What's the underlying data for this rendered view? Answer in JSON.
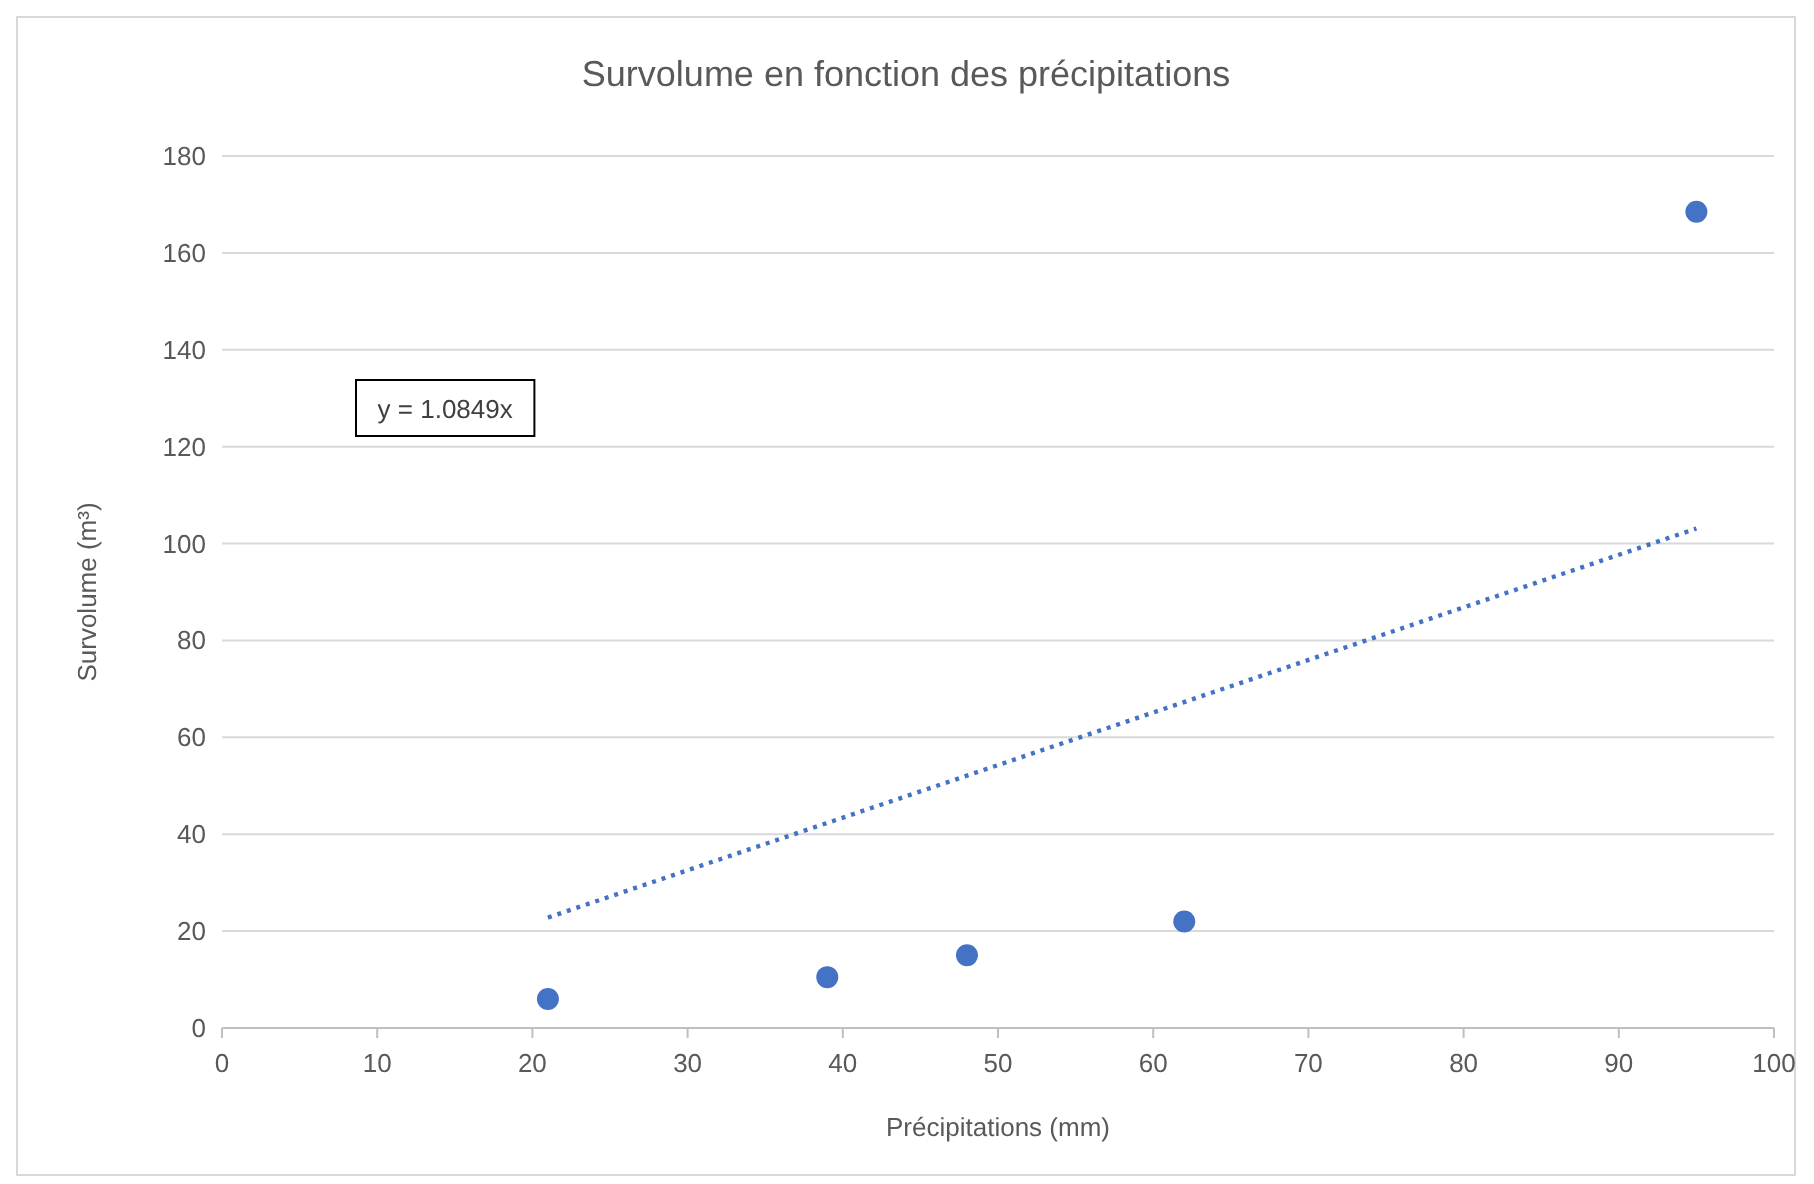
{
  "chart_data": {
    "type": "scatter",
    "title": "Survolume en fonction des précipitations",
    "xlabel": "Précipitations (mm)",
    "ylabel": "Survolume (m³)",
    "xlim": [
      0,
      100
    ],
    "xticks": [
      0,
      10,
      20,
      30,
      40,
      50,
      60,
      70,
      80,
      90,
      100
    ],
    "ylim": [
      0,
      180
    ],
    "yticks": [
      0,
      20,
      40,
      60,
      80,
      100,
      120,
      140,
      160,
      180
    ],
    "grid": "y",
    "marker": "circle",
    "series": [
      {
        "color": "#4472c4",
        "x": [
          21,
          39,
          48,
          62,
          95
        ],
        "values": [
          6,
          10.5,
          15,
          22,
          168.5
        ]
      },
      {
        "type": "line",
        "color": "#4472c4",
        "line_style": "dotted",
        "marker": "none",
        "x": [
          21,
          95
        ],
        "values": [
          22.8,
          103.1
        ]
      }
    ],
    "annotations": [
      "y = 1.0849x"
    ]
  }
}
